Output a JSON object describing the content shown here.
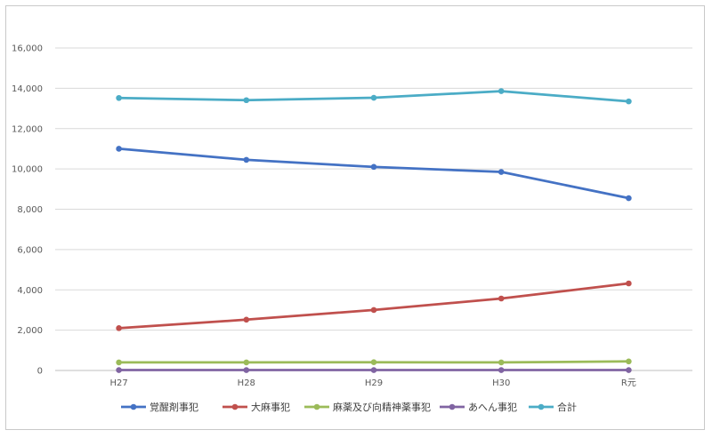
{
  "chart_data": {
    "type": "line",
    "title": "",
    "xlabel": "",
    "ylabel": "",
    "categories": [
      "H27",
      "H28",
      "H29",
      "H30",
      "R元"
    ],
    "ylim": [
      0,
      16000
    ],
    "yticks": [
      0,
      2000,
      4000,
      6000,
      8000,
      10000,
      12000,
      14000,
      16000
    ],
    "ytick_labels": [
      "0",
      "2,000",
      "4,000",
      "6,000",
      "8,000",
      "10,000",
      "12,000",
      "14,000",
      "16,000"
    ],
    "grid": true,
    "legend_position": "bottom",
    "series": [
      {
        "name": "覚醒剤事犯",
        "color": "#4472C4",
        "values": [
          11000,
          10450,
          10100,
          9850,
          8550
        ]
      },
      {
        "name": "大麻事犯",
        "color": "#C0504D",
        "values": [
          2100,
          2520,
          3000,
          3570,
          4320
        ]
      },
      {
        "name": "麻薬及び向精神薬事犯",
        "color": "#9BBB59",
        "values": [
          400,
          400,
          410,
          400,
          450
        ]
      },
      {
        "name": "あへん事犯",
        "color": "#8064A2",
        "values": [
          20,
          20,
          20,
          20,
          20
        ]
      },
      {
        "name": "合計",
        "color": "#4BACC6",
        "values": [
          13520,
          13410,
          13530,
          13860,
          13350
        ]
      }
    ]
  }
}
